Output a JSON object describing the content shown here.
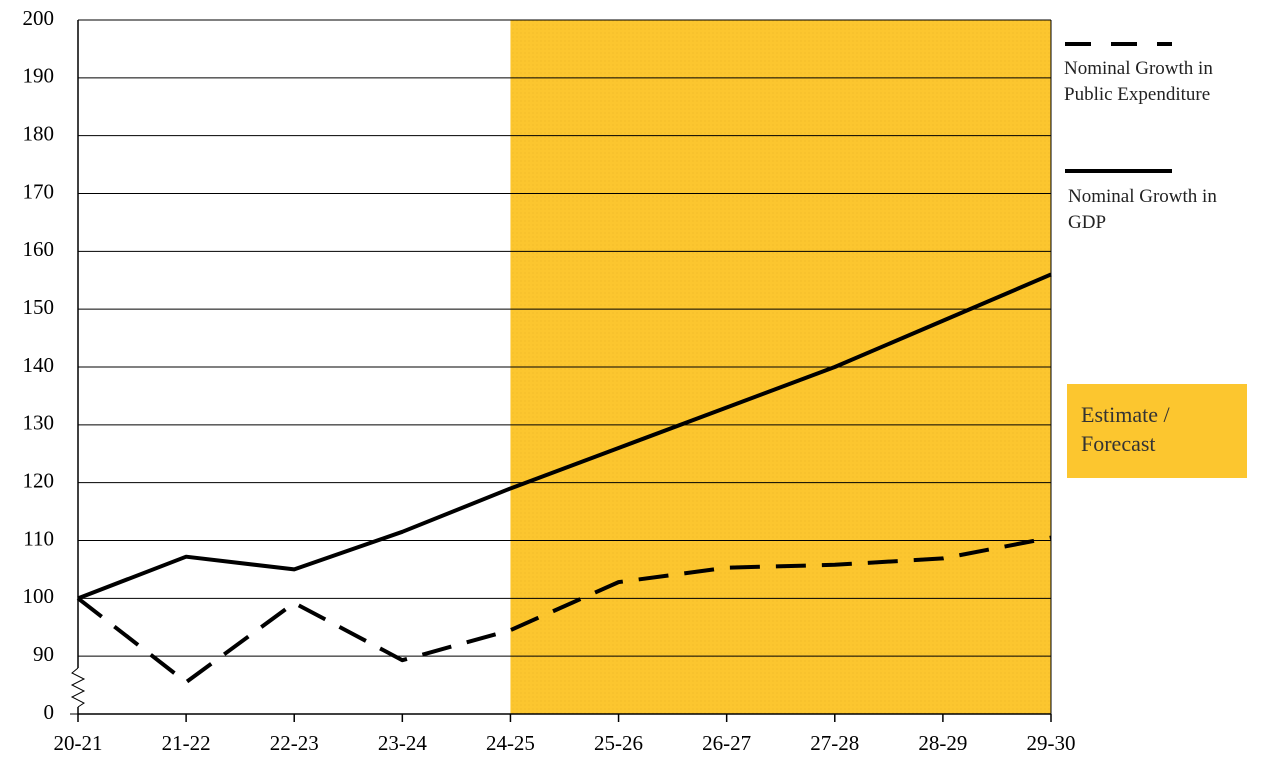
{
  "chart_data": {
    "type": "line",
    "categories": [
      "20-21",
      "21-22",
      "22-23",
      "23-24",
      "24-25",
      "25-26",
      "26-27",
      "27-28",
      "28-29",
      "29-30"
    ],
    "series": [
      {
        "name": "Nominal Growth in Public Expenditure",
        "color": "#000000",
        "dash": true,
        "values": [
          100,
          85.5,
          99.2,
          89.3,
          94.5,
          102.8,
          105.3,
          105.8,
          106.9,
          110.5
        ]
      },
      {
        "name": "Nominal Growth in GDP",
        "color": "#000000",
        "dash": false,
        "values": [
          100,
          107.2,
          105,
          111.5,
          119,
          126,
          133,
          140,
          148,
          156
        ]
      }
    ],
    "ylim": [
      0,
      200
    ],
    "axis_break": [
      0,
      80
    ],
    "yticks": [
      0,
      90,
      100,
      110,
      120,
      130,
      140,
      150,
      160,
      170,
      180,
      190,
      200
    ],
    "grid": true,
    "shade": {
      "from": "24-25",
      "to": "29-30",
      "label": "Estimate / Forecast",
      "color": "#fcc62f"
    }
  }
}
